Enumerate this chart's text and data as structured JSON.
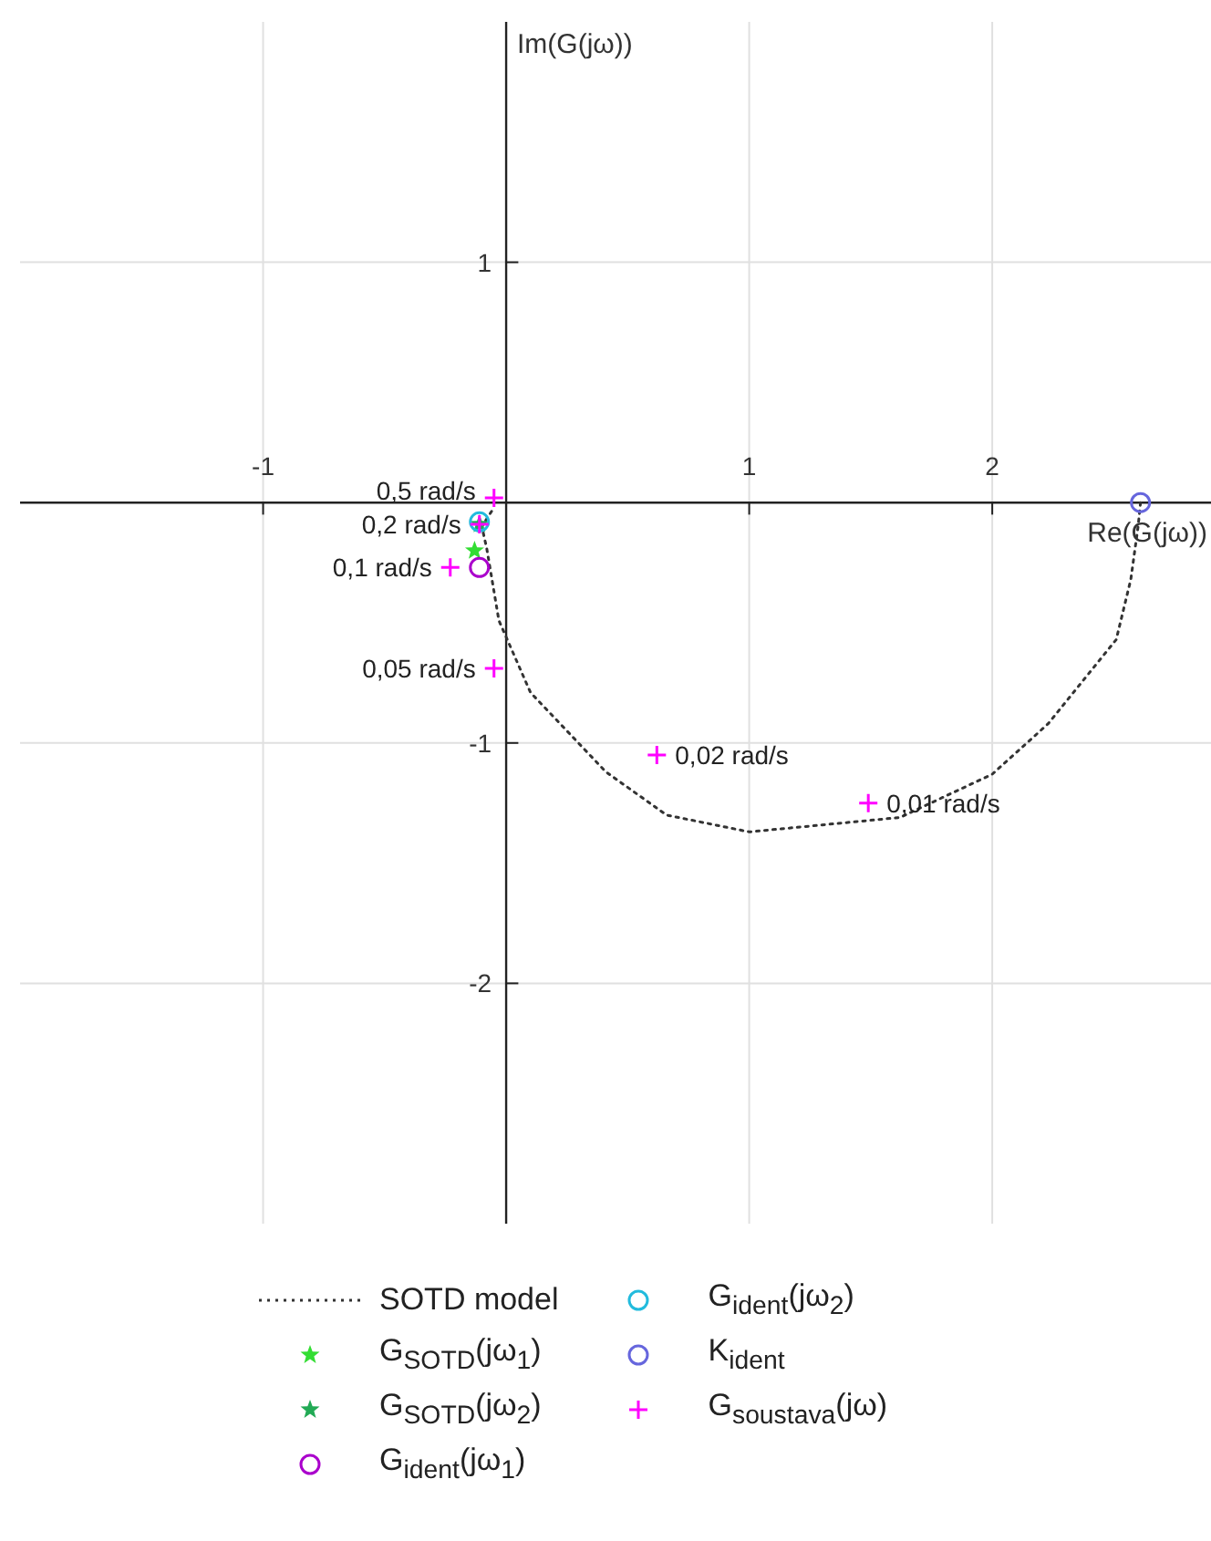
{
  "chart_data": {
    "type": "scatter",
    "xlabel": "Re(G(jω))",
    "ylabel": "Im(G(jω))",
    "xlim": [
      -2,
      2.9
    ],
    "ylim": [
      -3,
      2
    ],
    "xticks": [
      -1,
      1,
      2
    ],
    "yticks": [
      -2,
      -1,
      1
    ],
    "grid": true,
    "legend": "bottom",
    "series": [
      {
        "name": "SOTD model",
        "type": "line",
        "line_style": "dotted",
        "marker": "none",
        "color": "#333333",
        "x": [
          2.61,
          2.6,
          2.57,
          2.51,
          2.23,
          2.0,
          1.62,
          1.0,
          0.66,
          0.41,
          0.1,
          -0.03,
          -0.08,
          -0.1,
          -0.05
        ],
        "values": [
          0,
          -0.1,
          -0.32,
          -0.57,
          -0.92,
          -1.13,
          -1.31,
          -1.37,
          -1.3,
          -1.12,
          -0.79,
          -0.49,
          -0.19,
          -0.1,
          -0.02
        ]
      },
      {
        "name": "G$_{SOTD}$(jω$_{1}$)",
        "marker": "star",
        "color": "#33dd33",
        "x": [
          -0.13
        ],
        "values": [
          -0.2
        ]
      },
      {
        "name": "G$_{SOTD}$(jω$_{2}$)",
        "marker": "star",
        "color": "#22aa55",
        "x": [
          -0.11
        ],
        "values": [
          -0.09
        ]
      },
      {
        "name": "G$_{ident}$(jω$_{1}$)",
        "marker": "circle",
        "color": "#aa00cc",
        "x": [
          -0.11
        ],
        "values": [
          -0.27
        ]
      },
      {
        "name": "G$_{ident}$(jω$_{2}$)",
        "marker": "circle",
        "color": "#22bbdd",
        "x": [
          -0.11
        ],
        "values": [
          -0.08
        ]
      },
      {
        "name": "K$_{ident}$",
        "marker": "circle",
        "color": "#6666dd",
        "x": [
          2.61
        ],
        "values": [
          0
        ]
      },
      {
        "name": "G$_{soustava}$(jω)",
        "marker": "cross",
        "color": "#ff00ff",
        "x": [
          -0.05,
          -0.11,
          -0.23,
          -0.05,
          0.62,
          1.49
        ],
        "values": [
          0.02,
          -0.09,
          -0.27,
          -0.69,
          -1.05,
          -1.25
        ]
      }
    ],
    "annotations": [
      {
        "text": "0,5 rad/s",
        "x": -0.05,
        "y": 0.02
      },
      {
        "text": "0,2 rad/s",
        "x": -0.11,
        "y": -0.09
      },
      {
        "text": "0,1 rad/s",
        "x": -0.23,
        "y": -0.27
      },
      {
        "text": "0,05 rad/s",
        "x": -0.05,
        "y": -0.69
      },
      {
        "text": "0,02 rad/s",
        "x": 0.62,
        "y": -1.05
      },
      {
        "text": "0,01 rad/s",
        "x": 1.49,
        "y": -1.25
      }
    ]
  }
}
